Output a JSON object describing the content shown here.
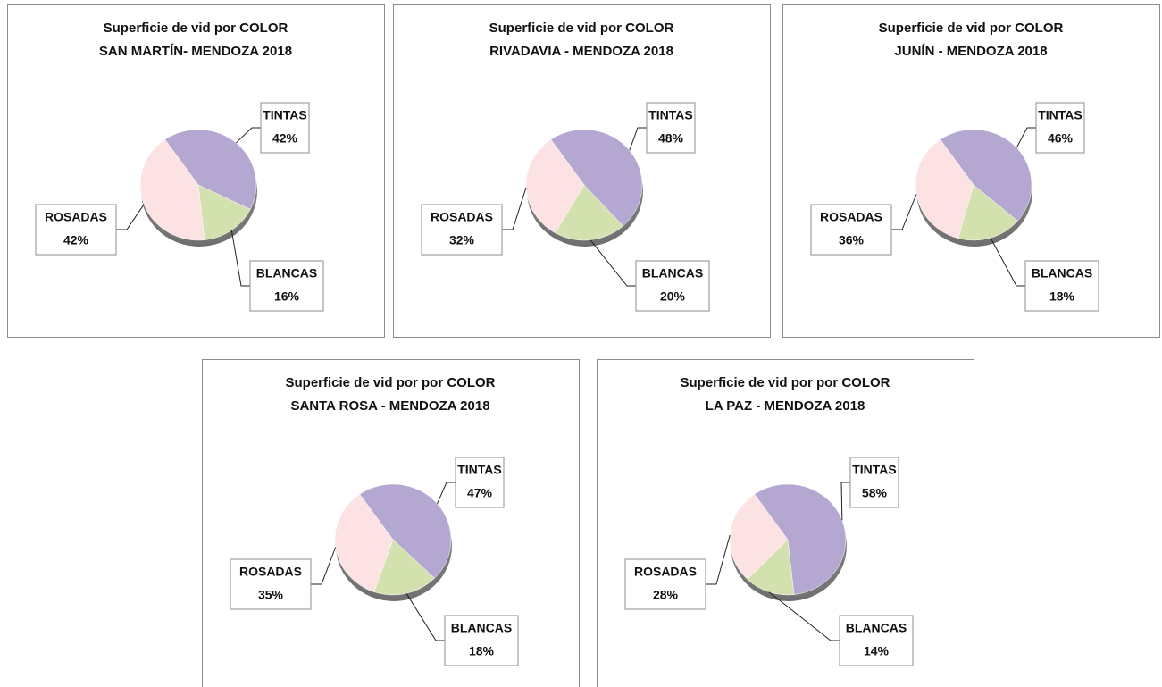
{
  "chart_data": [
    {
      "type": "pie",
      "title": "Superficie de vid por COLOR",
      "subtitle": "SAN MARTÍN- MENDOZA 2018",
      "categories": [
        "TINTAS",
        "BLANCAS",
        "ROSADAS"
      ],
      "values": [
        42,
        16,
        42
      ],
      "value_labels": [
        "42%",
        "16%",
        "42%"
      ],
      "colors": [
        "#b4a7d1",
        "#d2e1ae",
        "#fce2e2"
      ]
    },
    {
      "type": "pie",
      "title": "Superficie de vid por COLOR",
      "subtitle": "RIVADAVIA - MENDOZA 2018",
      "categories": [
        "TINTAS",
        "BLANCAS",
        "ROSADAS"
      ],
      "values": [
        48,
        20,
        32
      ],
      "value_labels": [
        "48%",
        "20%",
        "32%"
      ],
      "colors": [
        "#b4a7d1",
        "#d2e1ae",
        "#fce2e2"
      ]
    },
    {
      "type": "pie",
      "title": "Superficie de vid por COLOR",
      "subtitle": "JUNÍN - MENDOZA 2018",
      "categories": [
        "TINTAS",
        "BLANCAS",
        "ROSADAS"
      ],
      "values": [
        46,
        18,
        36
      ],
      "value_labels": [
        "46%",
        "18%",
        "36%"
      ],
      "colors": [
        "#b4a7d1",
        "#d2e1ae",
        "#fce2e2"
      ]
    },
    {
      "type": "pie",
      "title": "Superficie de vid por por COLOR",
      "subtitle": "SANTA ROSA - MENDOZA 2018",
      "categories": [
        "TINTAS",
        "BLANCAS",
        "ROSADAS"
      ],
      "values": [
        47,
        18,
        35
      ],
      "value_labels": [
        "47%",
        "18%",
        "35%"
      ],
      "colors": [
        "#b4a7d1",
        "#d2e1ae",
        "#fce2e2"
      ]
    },
    {
      "type": "pie",
      "title": "Superficie de vid por por COLOR",
      "subtitle": "LA PAZ - MENDOZA 2018",
      "categories": [
        "TINTAS",
        "BLANCAS",
        "ROSADAS"
      ],
      "values": [
        58,
        14,
        28
      ],
      "value_labels": [
        "58%",
        "14%",
        "28%"
      ],
      "colors": [
        "#b4a7d1",
        "#d2e1ae",
        "#fce2e2"
      ]
    }
  ]
}
